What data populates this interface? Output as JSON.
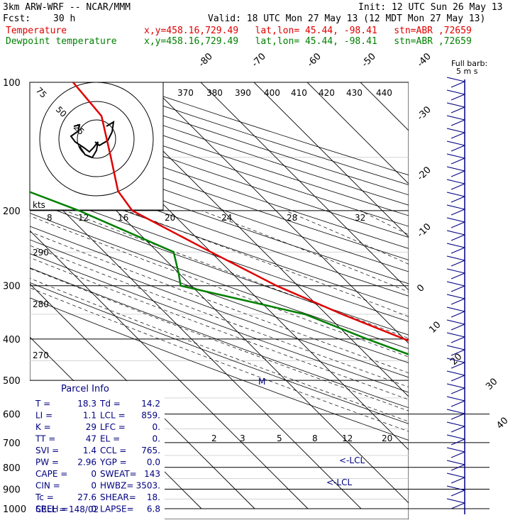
{
  "header": {
    "model": "3km ARW-WRF -- NCAR/MMM",
    "init": "Init: 12 UTC Sun 26 May 13",
    "fcst_label": "Fcst:",
    "fcst_value": "30 h",
    "valid": "Valid: 18 UTC Mon 27 May 13 (12 MDT Mon 27 May 13)",
    "temp_label": "Temperature",
    "temp_info": "x,y=458.16,729.49   lat,lon= 45.44, -98.41   stn=ABR ,72659",
    "dew_label": "Dewpoint temperature",
    "dew_info": "x,y=458.16,729.49   lat,lon= 45.44, -98.41   stn=ABR ,72659"
  },
  "colors": {
    "temperature": "#e00000",
    "dewpoint": "#008000",
    "barbs": "#000080",
    "parcel": "#000080"
  },
  "chart_data": {
    "type": "line",
    "title": "",
    "pressure_ticks": [
      "100",
      "200",
      "300",
      "400",
      "500",
      "600",
      "700",
      "800",
      "900",
      "1000"
    ],
    "isotherm_ticks": [
      "-80",
      "-70",
      "-60",
      "-50",
      "-40",
      "-30",
      "-20",
      "-10",
      "0",
      "10",
      "20",
      "30",
      "40"
    ],
    "theta_labels": [
      "370",
      "380",
      "390",
      "400",
      "410",
      "420",
      "430",
      "440"
    ],
    "theta_e_labels": [
      "290",
      "280",
      "270"
    ],
    "mixing_ratio_labels": [
      "2",
      "3",
      "5",
      "8",
      "12",
      "20"
    ],
    "hodograph_speed_labels": [
      "8",
      "12",
      "16",
      "20",
      "24",
      "28",
      "32"
    ],
    "hodograph_ring_labels": [
      "75",
      "50",
      "25"
    ],
    "hodograph_units": "kts",
    "wind_legend": [
      "Full barb:",
      "5 m s"
    ],
    "lcl_labels": [
      "<-LCL",
      "<-LCL"
    ],
    "marker": "M",
    "series": [
      {
        "name": "Temperature",
        "points": [
          [
            100,
            -44
          ],
          [
            120,
            -45
          ],
          [
            150,
            -51
          ],
          [
            180,
            -56
          ],
          [
            200,
            -57
          ],
          [
            250,
            -50
          ],
          [
            300,
            -44
          ],
          [
            350,
            -37
          ],
          [
            400,
            -30
          ],
          [
            450,
            -23
          ],
          [
            500,
            -17
          ],
          [
            550,
            -11
          ],
          [
            600,
            -6
          ],
          [
            650,
            -1
          ],
          [
            700,
            3
          ],
          [
            750,
            7
          ],
          [
            800,
            11
          ],
          [
            850,
            14
          ],
          [
            870,
            17
          ],
          [
            900,
            19
          ],
          [
            920,
            18
          ],
          [
            940,
            18.3
          ]
        ]
      },
      {
        "name": "Dewpoint temperature",
        "points": [
          [
            100,
            -77
          ],
          [
            120,
            -82
          ],
          [
            150,
            -83
          ],
          [
            180,
            -73
          ],
          [
            200,
            -67
          ],
          [
            250,
            -57
          ],
          [
            280,
            -60
          ],
          [
            300,
            -62
          ],
          [
            350,
            -44
          ],
          [
            400,
            -37
          ],
          [
            450,
            -30
          ],
          [
            500,
            -24
          ],
          [
            550,
            -17
          ],
          [
            600,
            -10
          ],
          [
            650,
            -5
          ],
          [
            700,
            -1
          ],
          [
            750,
            3
          ],
          [
            800,
            7
          ],
          [
            850,
            9
          ],
          [
            900,
            12
          ],
          [
            940,
            14.2
          ]
        ]
      }
    ],
    "parcel_info": {
      "title": "Parcel Info",
      "rows": [
        [
          "T  =",
          "18.3",
          "Td =",
          "14.2"
        ],
        [
          "LI =",
          "1.1",
          "LCL =",
          "859."
        ],
        [
          "K  =",
          "29",
          "LFC =",
          "0."
        ],
        [
          "TT =",
          "47",
          "EL  =",
          "0."
        ],
        [
          "SVI =",
          "1.4",
          "CCL =",
          "765."
        ],
        [
          "PW =",
          "2.96",
          "YGP =",
          "0.0"
        ],
        [
          "CAPE =",
          "0",
          "SWEAT=",
          "143"
        ],
        [
          "CIN  =",
          "0",
          "HWBZ=",
          "3503."
        ],
        [
          "Tc =",
          "27.6",
          "SHEAR=",
          "18."
        ],
        [
          "SREH =",
          "0",
          "LAPSE=",
          "6.8"
        ]
      ],
      "cell": "CELL = 148/02"
    }
  }
}
